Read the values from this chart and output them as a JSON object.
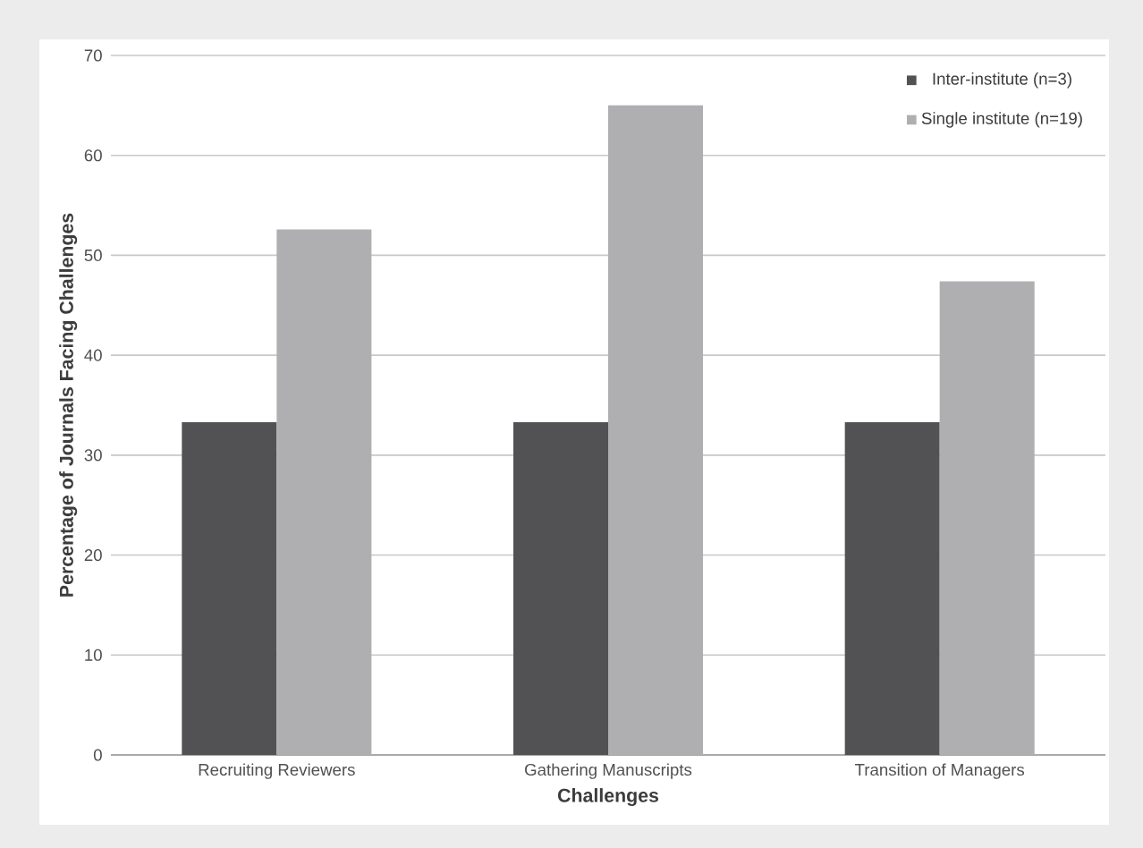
{
  "chart_data": {
    "type": "bar",
    "xlabel": "Challenges",
    "ylabel": "Percentage of Journals Facing Challenges",
    "categories": [
      "Recruiting Reviewers",
      "Gathering Manuscripts",
      "Transition of Managers"
    ],
    "series": [
      {
        "name": "Inter-institute (n=3)",
        "color": "#525254",
        "values": [
          33.3,
          33.3,
          33.3
        ]
      },
      {
        "name": "Single institute (n=19)",
        "color": "#afafb1",
        "values": [
          52.6,
          65,
          47.4
        ]
      }
    ],
    "ylim": [
      0,
      70
    ],
    "yticks": [
      0,
      10,
      20,
      30,
      40,
      50,
      60,
      70
    ],
    "grid": "y",
    "legend": "top right"
  }
}
